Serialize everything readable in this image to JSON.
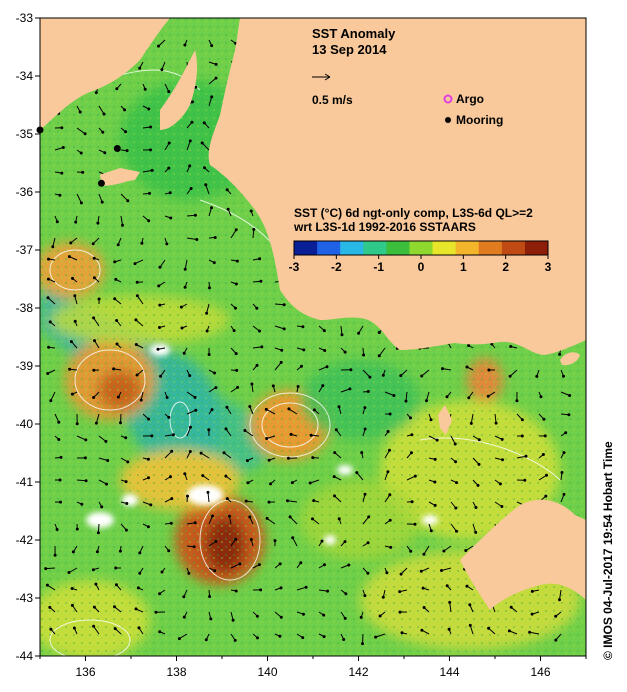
{
  "title": "SST Anomaly",
  "date": "13 Sep 2014",
  "scale_arrow_label": "0.5 m/s",
  "legend": {
    "argo_label": "Argo",
    "mooring_label": "Mooring",
    "argo_color": "#e040e0",
    "mooring_color": "#000000"
  },
  "colorbar": {
    "title_line1": "SST (°C) 6d ngt-only comp, L3S-6d QL>=2",
    "title_line2": "wrt L3S-1d 1992-2016 SSTAARS",
    "min": -3,
    "max": 3,
    "ticks": [
      "-3",
      "-2",
      "-1",
      "0",
      "1",
      "2",
      "3"
    ],
    "colors": [
      "#0a1e96",
      "#1f62e6",
      "#29b7e6",
      "#2fc98a",
      "#3bbf3b",
      "#8fd92f",
      "#e7e62a",
      "#f3b52a",
      "#e07b20",
      "#c04a14",
      "#8c1e0a"
    ]
  },
  "axes": {
    "lon_ticks": [
      "136",
      "138",
      "140",
      "142",
      "144",
      "146"
    ],
    "lat_ticks": [
      "-33",
      "-34",
      "-35",
      "-36",
      "-37",
      "-38",
      "-39",
      "-40",
      "-41",
      "-42",
      "-43",
      "-44"
    ],
    "lon_range": [
      135,
      147
    ],
    "lat_range": [
      -44,
      -33
    ]
  },
  "moorings": [
    {
      "lon": 135.0,
      "lat": -34.93
    },
    {
      "lon": 136.7,
      "lat": -35.25
    },
    {
      "lon": 136.35,
      "lat": -35.85
    }
  ],
  "side_label": "© IMOS 04-Jul-2017 19:54 Hobart Time",
  "colors": {
    "land": "#f9c99b",
    "ocean_base": "#6fcf4a"
  }
}
